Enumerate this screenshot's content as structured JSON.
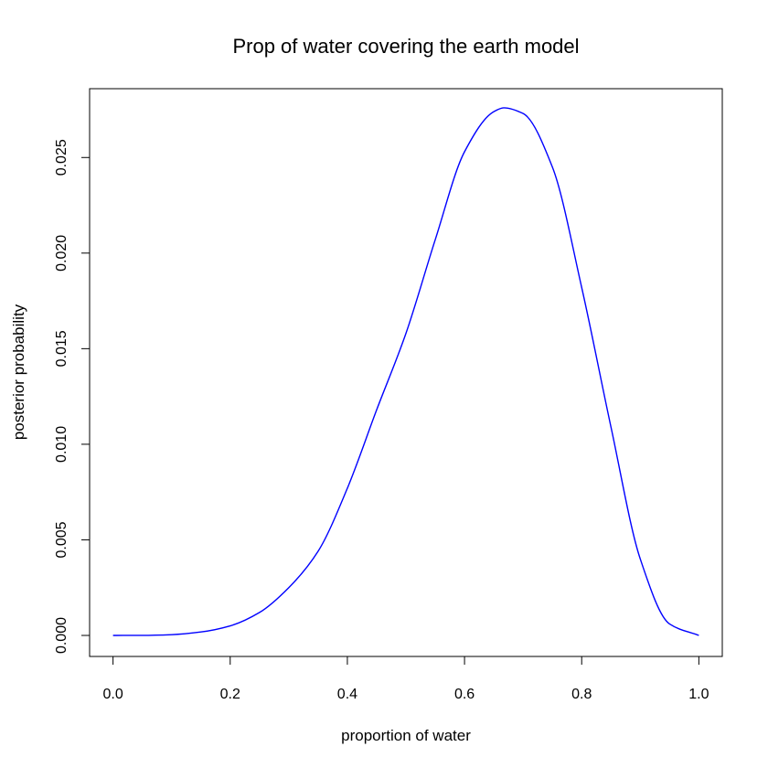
{
  "chart_data": {
    "type": "line",
    "title": "Prop of water covering the earth model",
    "xlabel": "proportion of water",
    "ylabel": "posterior probability",
    "xlim": [
      -0.04,
      1.04
    ],
    "ylim": [
      -0.0011,
      0.0286
    ],
    "x_ticks": [
      0.0,
      0.2,
      0.4,
      0.6,
      0.8,
      1.0
    ],
    "x_tick_labels": [
      "0.0",
      "0.2",
      "0.4",
      "0.6",
      "0.8",
      "1.0"
    ],
    "y_ticks": [
      0.0,
      0.005,
      0.01,
      0.015,
      0.02,
      0.025
    ],
    "y_tick_labels": [
      "0.000",
      "0.005",
      "0.010",
      "0.015",
      "0.020",
      "0.025"
    ],
    "grid": false,
    "series": [
      {
        "color": "#0000ff",
        "x": [
          0.0,
          0.05,
          0.1,
          0.15,
          0.2,
          0.25,
          0.3,
          0.35,
          0.4,
          0.45,
          0.5,
          0.55,
          0.6,
          0.65,
          0.667,
          0.7,
          0.75,
          0.8,
          0.85,
          0.9,
          0.95,
          1.0
        ],
        "y": [
          0.0,
          3e-06,
          4e-05,
          0.00018,
          0.0005,
          0.0012,
          0.0025,
          0.0044,
          0.0077,
          0.0118,
          0.0158,
          0.0207,
          0.0253,
          0.0274,
          0.0276,
          0.0273,
          0.0245,
          0.0182,
          0.0109,
          0.004,
          0.0006,
          0.0
        ]
      }
    ]
  }
}
